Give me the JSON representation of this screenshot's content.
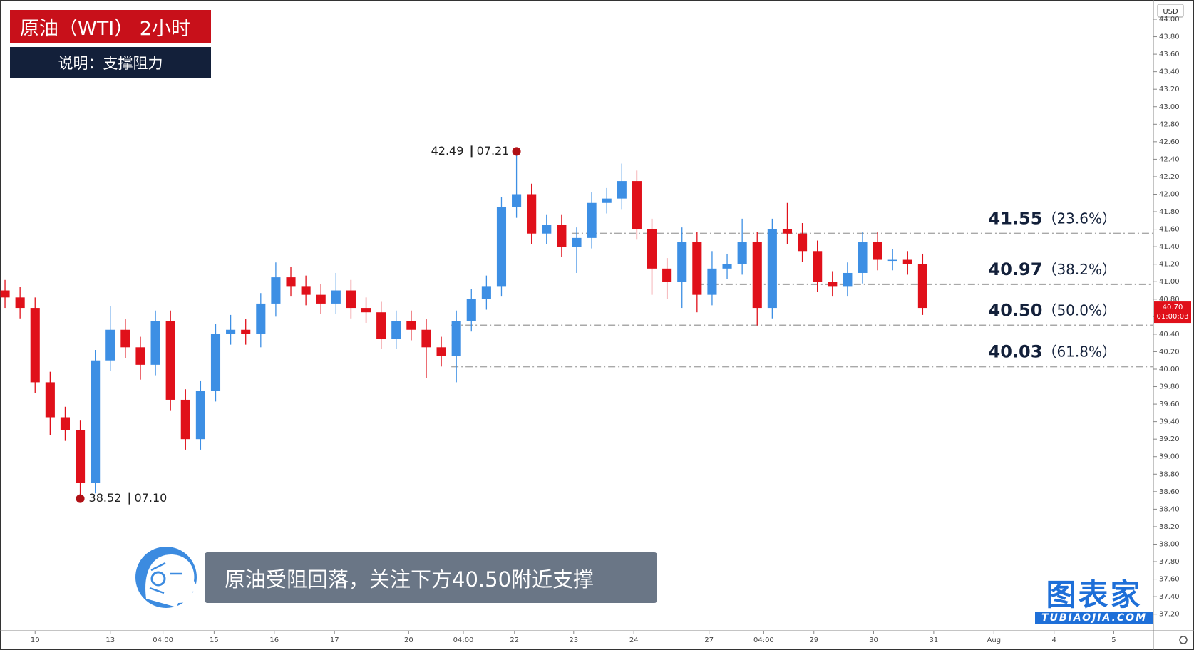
{
  "chart_data": {
    "type": "candlestick",
    "title": "原油（WTI） 2小时",
    "subtitle": "说明：支撑阻力",
    "caption": "原油受阻回落，关注下方40.50附近支撑",
    "currency": "USD",
    "up_color": "#3d8fe4",
    "down_color": "#e0101a",
    "xlim": [
      0,
      230
    ],
    "ylim": [
      37.01,
      44.22
    ],
    "x": [
      1,
      4,
      7,
      10,
      13,
      16,
      19,
      22,
      25,
      28,
      31,
      34,
      37,
      40,
      43,
      46,
      49,
      52,
      55,
      58,
      61,
      64,
      67,
      70,
      73,
      76,
      79,
      82,
      85,
      88,
      91,
      94,
      97,
      100,
      103,
      106,
      109,
      112,
      115,
      118,
      121,
      124,
      127,
      130,
      133,
      136,
      139,
      142,
      145,
      148,
      151,
      154,
      157,
      160,
      163,
      166,
      169,
      172,
      175,
      178,
      181,
      184
    ],
    "open": [
      40.9,
      40.82,
      40.7,
      39.85,
      39.45,
      39.3,
      38.7,
      40.1,
      40.45,
      40.25,
      40.05,
      40.55,
      39.65,
      39.2,
      39.75,
      40.4,
      40.45,
      40.4,
      40.75,
      41.05,
      40.95,
      40.85,
      40.75,
      40.9,
      40.7,
      40.65,
      40.35,
      40.55,
      40.45,
      40.25,
      40.15,
      40.55,
      40.8,
      40.95,
      41.85,
      42.0,
      41.55,
      41.65,
      41.4,
      41.5,
      41.9,
      41.95,
      42.15,
      41.6,
      41.15,
      41.0,
      41.45,
      40.85,
      41.15,
      41.2,
      41.45,
      40.7,
      41.6,
      41.55,
      41.35,
      41.0,
      40.95,
      41.1,
      41.45,
      41.25,
      41.25,
      41.2
    ],
    "high": [
      41.02,
      40.94,
      40.82,
      39.97,
      39.57,
      39.42,
      40.22,
      40.72,
      40.57,
      40.37,
      40.67,
      40.67,
      39.77,
      39.87,
      40.52,
      40.62,
      40.57,
      40.87,
      41.22,
      41.17,
      41.07,
      40.97,
      41.1,
      41.02,
      40.82,
      40.77,
      40.67,
      40.67,
      40.57,
      40.37,
      40.67,
      40.92,
      41.07,
      41.97,
      42.49,
      42.12,
      41.77,
      41.77,
      41.62,
      42.02,
      42.07,
      42.35,
      42.27,
      41.72,
      41.27,
      41.62,
      41.57,
      41.35,
      41.32,
      41.72,
      41.57,
      41.72,
      41.9,
      41.67,
      41.47,
      41.12,
      41.22,
      41.57,
      41.57,
      41.37,
      41.35,
      41.32
    ],
    "low": [
      40.7,
      40.58,
      39.73,
      39.25,
      39.18,
      38.52,
      38.58,
      39.98,
      40.13,
      39.88,
      39.93,
      39.53,
      39.08,
      39.08,
      39.63,
      40.28,
      40.28,
      40.25,
      40.6,
      40.83,
      40.73,
      40.63,
      40.63,
      40.58,
      40.53,
      40.23,
      40.23,
      40.33,
      39.9,
      40.03,
      39.85,
      40.43,
      40.68,
      40.83,
      41.73,
      41.43,
      41.43,
      41.28,
      41.1,
      41.38,
      41.78,
      41.83,
      41.48,
      40.85,
      40.8,
      40.7,
      40.65,
      40.73,
      41.03,
      41.08,
      40.5,
      40.58,
      41.43,
      41.23,
      40.88,
      40.83,
      40.83,
      40.98,
      41.13,
      41.13,
      41.08,
      40.62
    ],
    "close": [
      40.82,
      40.7,
      39.85,
      39.45,
      39.3,
      38.7,
      40.1,
      40.45,
      40.25,
      40.05,
      40.55,
      39.65,
      39.2,
      39.75,
      40.4,
      40.45,
      40.4,
      40.75,
      41.05,
      40.95,
      40.85,
      40.75,
      40.9,
      40.7,
      40.65,
      40.35,
      40.55,
      40.45,
      40.25,
      40.15,
      40.55,
      40.8,
      40.95,
      41.85,
      42.0,
      41.55,
      41.65,
      41.4,
      41.5,
      41.9,
      41.95,
      42.15,
      41.6,
      41.15,
      41.0,
      41.45,
      40.85,
      41.15,
      41.2,
      41.45,
      40.7,
      41.6,
      41.55,
      41.35,
      41.0,
      40.95,
      41.1,
      41.45,
      41.25,
      41.25,
      41.2,
      40.7
    ],
    "yticks": [
      {
        "value": 37.2,
        "label": "37.20"
      },
      {
        "value": 37.4,
        "label": "37.40"
      },
      {
        "value": 37.6,
        "label": "37.60"
      },
      {
        "value": 37.8,
        "label": "37.80"
      },
      {
        "value": 38,
        "label": "38.00"
      },
      {
        "value": 38.2,
        "label": "38.20"
      },
      {
        "value": 38.4,
        "label": "38.40"
      },
      {
        "value": 38.6,
        "label": "38.60"
      },
      {
        "value": 38.8,
        "label": "38.80"
      },
      {
        "value": 39,
        "label": "39.00"
      },
      {
        "value": 39.2,
        "label": "39.20"
      },
      {
        "value": 39.4,
        "label": "39.40"
      },
      {
        "value": 39.6,
        "label": "39.60"
      },
      {
        "value": 39.8,
        "label": "39.80"
      },
      {
        "value": 40,
        "label": "40.00"
      },
      {
        "value": 40.2,
        "label": "40.20"
      },
      {
        "value": 40.4,
        "label": "40.40"
      },
      {
        "value": 40.6,
        "label": "40.60"
      },
      {
        "value": 40.8,
        "label": "40.80"
      },
      {
        "value": 41,
        "label": "41.00"
      },
      {
        "value": 41.2,
        "label": "41.20"
      },
      {
        "value": 41.4,
        "label": "41.40"
      },
      {
        "value": 41.6,
        "label": "41.60"
      },
      {
        "value": 41.8,
        "label": "41.80"
      },
      {
        "value": 42,
        "label": "42.00"
      },
      {
        "value": 42.2,
        "label": "42.20"
      },
      {
        "value": 42.4,
        "label": "42.40"
      },
      {
        "value": 42.6,
        "label": "42.60"
      },
      {
        "value": 42.8,
        "label": "42.80"
      },
      {
        "value": 43,
        "label": "43.00"
      },
      {
        "value": 43.2,
        "label": "43.20"
      },
      {
        "value": 43.4,
        "label": "43.40"
      },
      {
        "value": 43.6,
        "label": "43.60"
      },
      {
        "value": 43.8,
        "label": "43.80"
      },
      {
        "value": 44,
        "label": "44.00"
      }
    ],
    "xticks": [
      {
        "value": 7,
        "label": "10"
      },
      {
        "value": 22,
        "label": "13"
      },
      {
        "value": 32.5,
        "label": "04:00"
      },
      {
        "value": 42.7,
        "label": "15"
      },
      {
        "value": 54.7,
        "label": "16"
      },
      {
        "value": 66.7,
        "label": "17"
      },
      {
        "value": 81.5,
        "label": "20"
      },
      {
        "value": 92.4,
        "label": "04:00"
      },
      {
        "value": 102.6,
        "label": "22"
      },
      {
        "value": 114.4,
        "label": "23"
      },
      {
        "value": 126.4,
        "label": "24"
      },
      {
        "value": 141.4,
        "label": "27"
      },
      {
        "value": 152.3,
        "label": "04:00"
      },
      {
        "value": 162.3,
        "label": "29"
      },
      {
        "value": 174.2,
        "label": "30"
      },
      {
        "value": 186.2,
        "label": "31"
      },
      {
        "value": 198.2,
        "label": "Aug"
      },
      {
        "value": 210.2,
        "label": "4"
      },
      {
        "value": 222.1,
        "label": "5"
      }
    ],
    "last_price": {
      "value": 40.7,
      "label": "40.70",
      "countdown": "01:00:03"
    },
    "annotations": [
      {
        "price": 42.49,
        "date": "07.21",
        "x": 103,
        "side": "top"
      },
      {
        "price": 38.52,
        "date": "07.10",
        "x": 16,
        "side": "bottom"
      }
    ],
    "levels": [
      {
        "value": 41.55,
        "label": "41.55",
        "ratio": "（23.6%）",
        "from_x": 114
      },
      {
        "value": 40.97,
        "label": "40.97",
        "ratio": "（38.2%）",
        "from_x": 139
      },
      {
        "value": 40.5,
        "label": "40.50",
        "ratio": "（50.0%）",
        "from_x": 90
      },
      {
        "value": 40.03,
        "label": "40.03",
        "ratio": "（61.8%）",
        "from_x": 90
      }
    ],
    "level_color": "#a9a9a9",
    "watermark": {
      "name": "图表家",
      "site": "TUBIAOJIA.COM"
    }
  }
}
